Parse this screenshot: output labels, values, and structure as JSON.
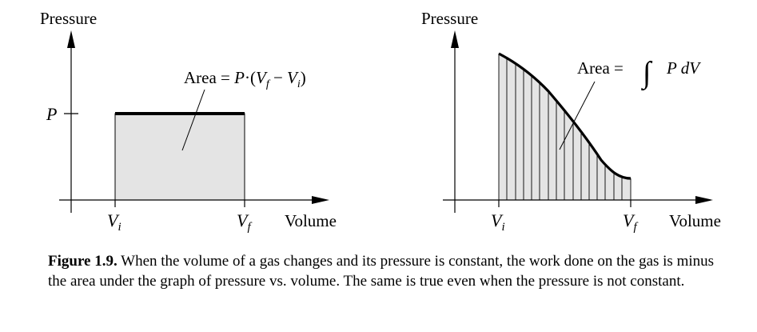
{
  "left_graph": {
    "y_axis_label": "Pressure",
    "x_axis_label": "Volume",
    "p_label": "P",
    "vi_main": "V",
    "vi_sub": "i",
    "vf_main": "V",
    "vf_sub": "f",
    "area_prefix": "Area = ",
    "area_P": "P",
    "area_dot": "·(",
    "area_V1": "V",
    "area_V1_sub": "f",
    "area_minus": " − ",
    "area_V2": "V",
    "area_V2_sub": "i",
    "area_close": ")"
  },
  "right_graph": {
    "y_axis_label": "Pressure",
    "x_axis_label": "Volume",
    "vi_main": "V",
    "vi_sub": "i",
    "vf_main": "V",
    "vf_sub": "f",
    "area_prefix": "Area = ",
    "integral_sign": "∫",
    "integrand": "P dV"
  },
  "caption": {
    "lead": "Figure 1.9.",
    "text": " When the volume of a gas changes and its pressure is constant, the work done on the gas is minus the area under the graph of pressure vs. volume. The same is true even when the pressure is not constant."
  }
}
